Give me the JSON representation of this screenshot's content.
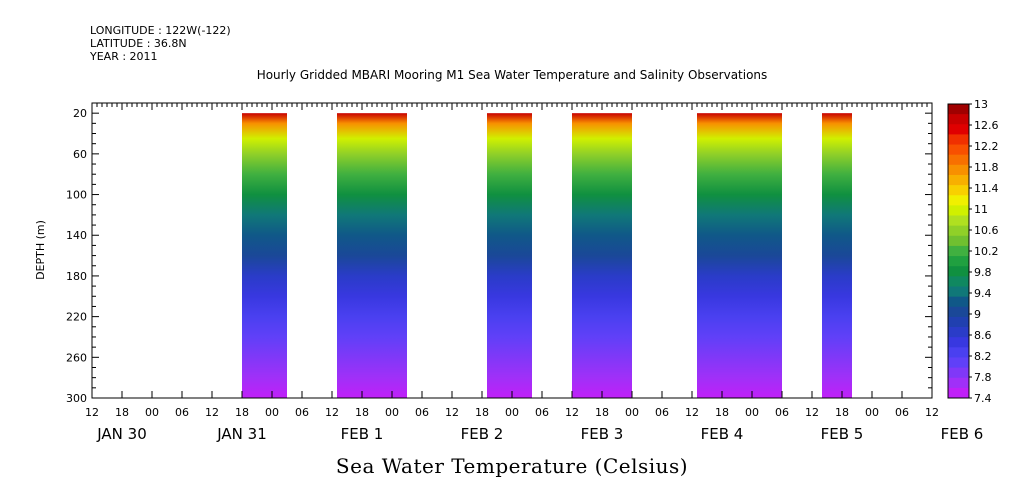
{
  "meta": {
    "longitude": "LONGITUDE : 122W(-122)",
    "latitude": "LATITUDE : 36.8N",
    "year": "YEAR : 2011"
  },
  "chart_data": {
    "type": "heatmap",
    "title": "Hourly Gridded MBARI Mooring M1 Sea Water Temperature and Salinity Observations",
    "variable_title": "Sea Water Temperature (Celsius)",
    "ylabel": "DEPTH (m)",
    "ylim": [
      300,
      10
    ],
    "yticks": [
      20,
      60,
      100,
      140,
      180,
      220,
      260,
      300
    ],
    "x_unit": "hours since 2011-01-30 00:00",
    "xlim": [
      12,
      180
    ],
    "hour_tick_labels": [
      "12",
      "18",
      "00",
      "06",
      "12",
      "18",
      "00",
      "06",
      "12",
      "18",
      "00",
      "06",
      "12",
      "18",
      "00",
      "06",
      "12",
      "18",
      "00",
      "06",
      "12",
      "18",
      "00",
      "06",
      "12",
      "18",
      "00",
      "06",
      "12"
    ],
    "day_labels": [
      {
        "label": "JAN 30",
        "hour": 18
      },
      {
        "label": "JAN 31",
        "hour": 42
      },
      {
        "label": "FEB  1",
        "hour": 66
      },
      {
        "label": "FEB  2",
        "hour": 90
      },
      {
        "label": "FEB  3",
        "hour": 114
      },
      {
        "label": "FEB  4",
        "hour": 138
      },
      {
        "label": "FEB  5",
        "hour": 162
      },
      {
        "label": "FEB  6",
        "hour": 186
      }
    ],
    "data_segments": [
      {
        "start_hour": 42,
        "end_hour": 51
      },
      {
        "start_hour": 61,
        "end_hour": 75
      },
      {
        "start_hour": 91,
        "end_hour": 100
      },
      {
        "start_hour": 108,
        "end_hour": 120
      },
      {
        "start_hour": 133,
        "end_hour": 150
      },
      {
        "start_hour": 158,
        "end_hour": 164
      }
    ],
    "depth_profile": [
      {
        "depth": 20,
        "temp": 12.8
      },
      {
        "depth": 30,
        "temp": 11.8
      },
      {
        "depth": 45,
        "temp": 11.0
      },
      {
        "depth": 60,
        "temp": 10.6
      },
      {
        "depth": 80,
        "temp": 10.2
      },
      {
        "depth": 100,
        "temp": 9.8
      },
      {
        "depth": 120,
        "temp": 9.5
      },
      {
        "depth": 140,
        "temp": 9.2
      },
      {
        "depth": 160,
        "temp": 9.0
      },
      {
        "depth": 180,
        "temp": 8.7
      },
      {
        "depth": 200,
        "temp": 8.5
      },
      {
        "depth": 220,
        "temp": 8.3
      },
      {
        "depth": 240,
        "temp": 8.1
      },
      {
        "depth": 260,
        "temp": 7.9
      },
      {
        "depth": 280,
        "temp": 7.7
      },
      {
        "depth": 300,
        "temp": 7.5
      }
    ],
    "colorbar": {
      "labels": [
        "13",
        "12.6",
        "12.2",
        "11.8",
        "11.4",
        "11",
        "10.6",
        "10.2",
        "9.8",
        "9.4",
        "9",
        "8.6",
        "8.2",
        "7.8",
        "7.4"
      ],
      "colors": [
        "#a00000",
        "#c80000",
        "#e00000",
        "#f03000",
        "#f85000",
        "#f87000",
        "#f89000",
        "#f8b000",
        "#f8d000",
        "#f0f000",
        "#d0f000",
        "#b0e020",
        "#90d028",
        "#70c030",
        "#40b040",
        "#20a040",
        "#109040",
        "#108860",
        "#107878",
        "#105888",
        "#1a4898",
        "#2040b0",
        "#2a3cc8",
        "#3838e0",
        "#4a40f0",
        "#6040f8",
        "#8038f8",
        "#a030f8",
        "#c020f8"
      ],
      "vmin": 7.4,
      "vmax": 13
    }
  }
}
